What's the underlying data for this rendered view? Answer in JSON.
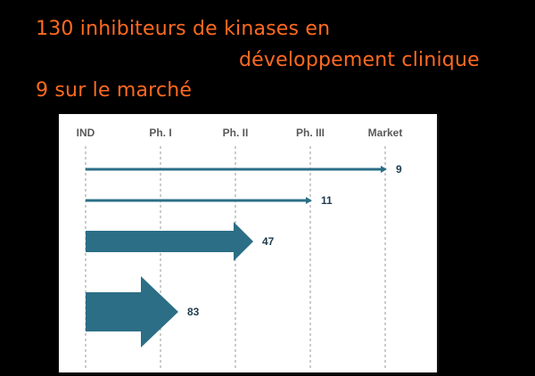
{
  "headline": {
    "line1": "130 inhibiteurs de kinases en",
    "line2": "développement clinique",
    "line3": "9 sur le marché"
  },
  "colors": {
    "background": "#000000",
    "headline": "#ff6a1f",
    "arrow": "#2b6e86",
    "grid": "#9a9a9a",
    "label": "#1f3b4d"
  },
  "chart_data": {
    "type": "bar",
    "orientation": "horizontal-arrows",
    "phases": [
      "IND",
      "Ph. I",
      "Ph. II",
      "Ph. III",
      "Market"
    ],
    "rows": [
      {
        "reached_phase": 4.0,
        "count": 9
      },
      {
        "reached_phase": 3.0,
        "count": 11
      },
      {
        "reached_phase": 2.0,
        "count": 47
      },
      {
        "reached_phase": 1.0,
        "count": 83
      }
    ],
    "values": [
      9,
      11,
      47,
      83
    ],
    "grid": true,
    "grid_style": "dashed vertical"
  }
}
